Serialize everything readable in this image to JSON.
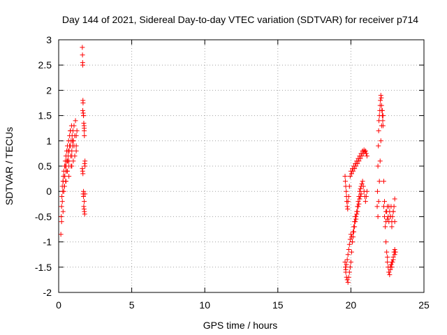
{
  "chart_data": {
    "type": "scatter",
    "title": "Day 144 of 2021, Sidereal Day-to-day VTEC variation (SDTVAR) for receiver p714",
    "xlabel": "GPS time / hours",
    "ylabel": "SDTVAR / TECUs",
    "xlim": [
      0,
      25
    ],
    "ylim": [
      -2,
      3
    ],
    "xticks": [
      0,
      5,
      10,
      15,
      20,
      25
    ],
    "xtick_labels": [
      "0",
      "5",
      "10",
      "15",
      "20",
      "25"
    ],
    "yticks": [
      -2,
      -1.5,
      -1,
      -0.5,
      0,
      0.5,
      1,
      1.5,
      2,
      2.5,
      3
    ],
    "ytick_labels": [
      "-2",
      "-1.5",
      "-1",
      "-0.5",
      "0",
      "0.5",
      "1",
      "1.5",
      "2",
      "2.5",
      "3"
    ],
    "grid": true,
    "marker": "+",
    "color": "#ff0000",
    "series": [
      {
        "name": "SDTVAR",
        "x": [
          0.15,
          0.18,
          0.2,
          0.22,
          0.25,
          0.28,
          0.3,
          0.32,
          0.35,
          0.38,
          0.4,
          0.42,
          0.45,
          0.48,
          0.5,
          0.52,
          0.55,
          0.58,
          0.6,
          0.62,
          0.65,
          0.68,
          0.7,
          0.72,
          0.75,
          0.78,
          0.8,
          0.82,
          0.85,
          0.88,
          0.9,
          0.92,
          0.95,
          0.98,
          1.0,
          1.05,
          1.1,
          1.15,
          1.2,
          1.25,
          0.2,
          0.25,
          0.3,
          0.35,
          0.4,
          0.45,
          0.5,
          0.55,
          0.6,
          0.65,
          0.7,
          0.75,
          0.8,
          0.85,
          0.9,
          0.95,
          1.0,
          1.05,
          1.1,
          1.2,
          0.3,
          0.4,
          0.5,
          0.6,
          0.7,
          0.8,
          0.9,
          1.0,
          1.1,
          1.2,
          1.62,
          1.63,
          1.64,
          1.65,
          1.66,
          1.67,
          1.68,
          1.7,
          1.72,
          1.74,
          1.75,
          1.76,
          1.78,
          1.8,
          1.62,
          1.64,
          1.66,
          1.68,
          1.7,
          1.72,
          1.74,
          1.76,
          1.78,
          1.8,
          1.65,
          1.7,
          1.75,
          1.8,
          1.7,
          1.75,
          19.6,
          19.62,
          19.65,
          19.68,
          19.7,
          19.72,
          19.75,
          19.78,
          19.8,
          19.85,
          19.9,
          19.95,
          20.0,
          20.05,
          20.1,
          20.15,
          20.2,
          20.25,
          20.3,
          20.35,
          20.4,
          20.45,
          20.5,
          20.55,
          20.6,
          20.65,
          20.7,
          20.75,
          20.8,
          20.85,
          20.9,
          20.95,
          21.0,
          21.05,
          21.1,
          19.6,
          19.62,
          19.65,
          19.7,
          19.75,
          19.8,
          19.85,
          19.9,
          19.95,
          20.0,
          20.05,
          20.1,
          20.15,
          20.2,
          20.25,
          20.3,
          20.35,
          20.4,
          20.45,
          20.5,
          20.55,
          20.6,
          20.65,
          20.7,
          20.75,
          20.8,
          20.85,
          20.9,
          20.95,
          21.0,
          21.05,
          21.1,
          19.65,
          19.7,
          19.75,
          19.8,
          19.85,
          19.9,
          19.95,
          20.0,
          20.05,
          20.1,
          20.15,
          20.2,
          20.25,
          20.3,
          20.35,
          20.4,
          20.45,
          20.5,
          20.55,
          20.6,
          20.65,
          20.7,
          21.8,
          21.82,
          21.85,
          21.88,
          21.9,
          21.92,
          21.95,
          21.98,
          22.0,
          22.02,
          22.05,
          22.08,
          22.1,
          22.12,
          22.15,
          22.18,
          22.2,
          21.85,
          21.9,
          21.95,
          22.0,
          22.05,
          22.1,
          22.15,
          22.2,
          22.25,
          22.25,
          22.3,
          22.35,
          22.4,
          22.45,
          22.5,
          22.55,
          22.6,
          22.65,
          22.7,
          22.75,
          22.8,
          22.85,
          22.9,
          22.95,
          23.0,
          22.3,
          22.4,
          22.5,
          22.6,
          22.7,
          22.8,
          22.9,
          23.0,
          22.4,
          22.45,
          22.5,
          22.55,
          22.6,
          22.65,
          22.7,
          22.75,
          22.8,
          22.85,
          22.9,
          22.95,
          23.0,
          23.05,
          22.5,
          22.6,
          22.7,
          22.8,
          22.9,
          23.0
        ],
        "y": [
          -0.85,
          -0.5,
          -0.3,
          -0.1,
          0.1,
          0.0,
          0.2,
          0.3,
          0.4,
          0.1,
          0.5,
          0.3,
          0.6,
          0.2,
          0.7,
          0.5,
          0.8,
          0.4,
          0.9,
          0.6,
          0.7,
          1.0,
          0.5,
          0.8,
          1.1,
          0.9,
          1.2,
          0.7,
          1.0,
          1.3,
          0.8,
          1.1,
          0.9,
          1.2,
          1.0,
          1.3,
          1.1,
          1.4,
          0.9,
          1.2,
          -0.6,
          -0.2,
          0.2,
          0.0,
          0.3,
          0.5,
          0.2,
          0.6,
          0.4,
          0.8,
          0.6,
          0.9,
          1.2,
          0.5,
          0.7,
          1.0,
          0.6,
          0.9,
          1.1,
          0.8,
          -0.4,
          0.1,
          0.4,
          0.6,
          0.3,
          0.9,
          0.5,
          1.0,
          0.7,
          1.1,
          2.85,
          2.7,
          2.55,
          2.5,
          1.8,
          1.75,
          1.55,
          1.5,
          1.35,
          1.3,
          1.2,
          1.1,
          0.55,
          0.5,
          0.45,
          0.4,
          0.35,
          -0.05,
          -0.1,
          -0.3,
          -0.35,
          -0.4,
          -0.45,
          -0.05,
          1.6,
          1.5,
          1.25,
          0.6,
          0.0,
          -0.2,
          0.3,
          0.2,
          0.1,
          0.0,
          -0.1,
          -0.2,
          -0.3,
          -0.35,
          -0.2,
          -0.1,
          0.1,
          0.3,
          0.4,
          0.35,
          0.45,
          0.4,
          0.5,
          0.45,
          0.55,
          0.5,
          0.6,
          0.55,
          0.65,
          0.6,
          0.7,
          0.65,
          0.75,
          0.7,
          0.8,
          0.75,
          0.82,
          0.78,
          0.8,
          0.75,
          0.7,
          -1.4,
          -1.5,
          -1.6,
          -1.7,
          -1.75,
          -1.8,
          -1.7,
          -1.6,
          -1.5,
          -1.4,
          -1.2,
          -1.0,
          -0.9,
          -0.8,
          -0.7,
          -0.6,
          -0.5,
          -0.4,
          -0.3,
          -0.2,
          -0.1,
          0.0,
          0.05,
          0.1,
          0.15,
          0.2,
          0.1,
          0.0,
          -0.1,
          -0.2,
          -0.1,
          0.0,
          -1.55,
          -1.45,
          -1.35,
          -1.25,
          -1.15,
          -1.05,
          -0.95,
          -0.85,
          -0.9,
          -1.0,
          -0.8,
          -0.7,
          -0.6,
          -0.5,
          -0.55,
          -0.45,
          -0.4,
          -0.3,
          -0.25,
          -0.15,
          -0.1,
          -0.05,
          -0.3,
          0.0,
          0.5,
          0.9,
          1.2,
          1.4,
          1.5,
          1.6,
          1.7,
          1.8,
          1.9,
          1.85,
          1.7,
          1.6,
          1.5,
          1.4,
          1.3,
          -0.5,
          -0.2,
          0.2,
          0.6,
          1.0,
          1.3,
          1.6,
          1.5,
          0.2,
          -0.3,
          -0.5,
          -0.7,
          -0.6,
          -0.4,
          -0.3,
          -0.5,
          -0.6,
          -0.4,
          -0.5,
          -0.3,
          -0.6,
          -0.5,
          -0.4,
          -0.3,
          -0.15,
          -0.2,
          -0.4,
          -0.55,
          -0.3,
          -0.5,
          -0.7,
          -0.4,
          -0.6,
          -1.0,
          -1.2,
          -1.4,
          -1.5,
          -1.6,
          -1.65,
          -1.55,
          -1.45,
          -1.5,
          -1.4,
          -1.3,
          -1.2,
          -1.15,
          -1.2,
          -1.3,
          -1.6,
          -1.5,
          -1.4,
          -1.35,
          -1.25
        ]
      }
    ]
  }
}
